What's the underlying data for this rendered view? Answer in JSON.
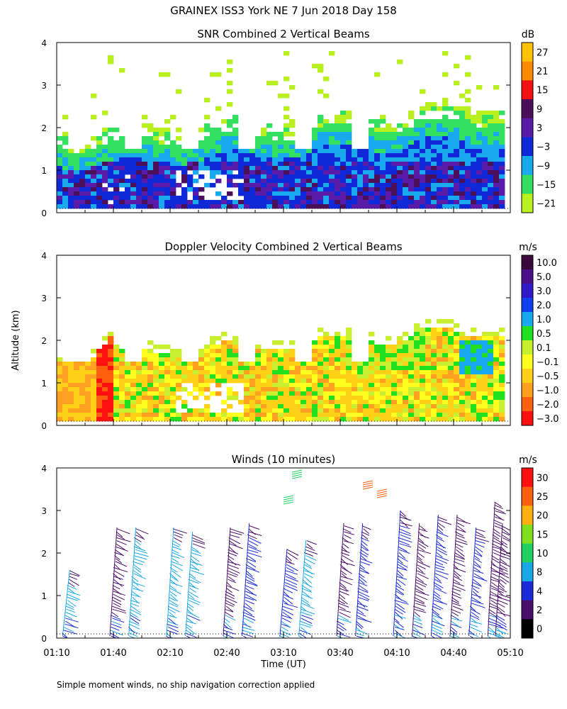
{
  "figure": {
    "title": "GRAINEX ISS3 York NE   7 Jun 2018 Day 158",
    "ylabel": "Altitude (km)",
    "xlabel": "Time (UT)",
    "footnote": "Simple moment winds, no ship navigation correction applied"
  },
  "chart_data": [
    {
      "type": "heatmap",
      "title": "SNR Combined 2 Vertical Beams",
      "unit": "dB",
      "ylim": [
        0,
        4
      ],
      "yticks": [
        "0",
        "1",
        "2",
        "3",
        "4"
      ],
      "x_range": [
        "01:10",
        "05:10"
      ],
      "colorbar": {
        "labels": [
          "27",
          "21",
          "15",
          "9",
          "3",
          "−3",
          "−9",
          "−15",
          "−21"
        ],
        "colors": [
          "#ffc000",
          "#ff8c00",
          "#f21010",
          "#4b0f5a",
          "#5a1ca8",
          "#0f28d8",
          "#19aaee",
          "#33e060",
          "#b8f020"
        ]
      },
      "profile": [
        {
          "alt": "0.2-0.6 km",
          "snr": "-3 to 9 dB"
        },
        {
          "alt": "0.6-1.4 km",
          "snr": "-9 to 9 dB"
        },
        {
          "alt": "1.4-2.3 km",
          "snr": "-15 to -3 dB"
        },
        {
          "alt": "2.3-3.8 km",
          "snr": "-21 to -15 dB (sparse)"
        }
      ]
    },
    {
      "type": "heatmap",
      "title": "Doppler Velocity Combined 2 Vertical Beams",
      "unit": "m/s",
      "ylim": [
        0,
        4
      ],
      "yticks": [
        "0",
        "1",
        "2",
        "3",
        "4"
      ],
      "x_range": [
        "01:10",
        "05:10"
      ],
      "colorbar": {
        "labels": [
          "10.0",
          "5.0",
          "3.0",
          "2.0",
          "1.0",
          "0.5",
          "0.1",
          "−0.1",
          "−0.5",
          "−1.0",
          "−2.0",
          "−3.0"
        ],
        "colors": [
          "#3a0a3c",
          "#4b0f8a",
          "#3018c8",
          "#1040f0",
          "#18a8f0",
          "#20e020",
          "#c8f030",
          "#ffff20",
          "#ffd018",
          "#ffa020",
          "#ff6010",
          "#ff1010"
        ]
      }
    },
    {
      "type": "scatter",
      "title": "Winds (10 minutes)",
      "unit": "m/s",
      "ylim": [
        0,
        4
      ],
      "yticks": [
        "0",
        "1",
        "2",
        "3",
        "4"
      ],
      "xticks": [
        "01:10",
        "01:40",
        "02:10",
        "02:40",
        "03:10",
        "03:40",
        "04:10",
        "04:40",
        "05:10"
      ],
      "colorbar": {
        "labels": [
          "30",
          "25",
          "20",
          "15",
          "10",
          "8",
          "4",
          "2",
          "0"
        ],
        "colors": [
          "#ff1010",
          "#ff6010",
          "#ffb010",
          "#80e020",
          "#20d060",
          "#18a8e8",
          "#1a2ad8",
          "#4b0f6a",
          "#000000"
        ]
      },
      "profiles": [
        {
          "time": "01:10",
          "top_km": 1.6,
          "color": "#18a8e8"
        },
        {
          "time": "01:40",
          "top_km": 2.6,
          "color": "#4b0f6a"
        },
        {
          "time": "01:50",
          "top_km": 2.6,
          "color": "#18a8e8"
        },
        {
          "time": "02:10",
          "top_km": 2.6,
          "color": "#18a8e8"
        },
        {
          "time": "02:20",
          "top_km": 2.5,
          "color": "#18a8e8"
        },
        {
          "time": "02:40",
          "top_km": 2.6,
          "color": "#4b0f6a"
        },
        {
          "time": "02:50",
          "top_km": 2.7,
          "color": "#1a2ad8"
        },
        {
          "time": "03:10",
          "top_km": 2.1,
          "color": "#1a2ad8"
        },
        {
          "time": "03:20",
          "top_km": 2.3,
          "color": "#18a8e8"
        },
        {
          "time": "03:40",
          "top_km": 2.7,
          "color": "#4b0f6a"
        },
        {
          "time": "03:50",
          "top_km": 2.7,
          "color": "#1a2ad8"
        },
        {
          "time": "04:10",
          "top_km": 3.0,
          "color": "#1a2ad8"
        },
        {
          "time": "04:20",
          "top_km": 2.7,
          "color": "#4b0f6a"
        },
        {
          "time": "04:30",
          "top_km": 2.9,
          "color": "#1a2ad8"
        },
        {
          "time": "04:40",
          "top_km": 2.9,
          "color": "#4b0f6a"
        },
        {
          "time": "04:50",
          "top_km": 2.6,
          "color": "#1a2ad8"
        },
        {
          "time": "05:00",
          "top_km": 3.2,
          "color": "#4b0f6a"
        },
        {
          "time": "05:10",
          "top_km": 2.7,
          "color": "#4b0f6a"
        }
      ]
    }
  ]
}
